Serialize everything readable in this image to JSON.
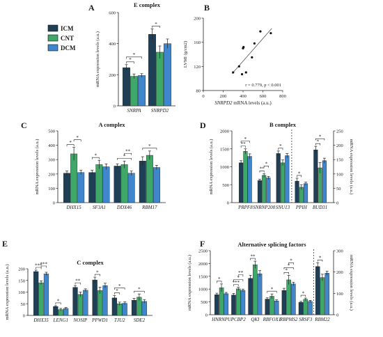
{
  "colors": {
    "ICM": "#1f3f56",
    "CNT": "#3fa768",
    "DCM": "#3f86cd"
  },
  "legend": {
    "entries": [
      {
        "label": "ICM",
        "color": "#1f3f56"
      },
      {
        "label": "CNT",
        "color": "#3fa768"
      },
      {
        "label": "DCM",
        "color": "#3f86cd"
      }
    ]
  },
  "chart_data": [
    {
      "id": "A",
      "letter": "A",
      "type": "bar",
      "title": "E complex",
      "ylabel": "mRNA expression levels (a.u.)",
      "ylim": [
        0,
        600
      ],
      "yticks": [
        0,
        200,
        400,
        600
      ],
      "categories": [
        "SNRPA",
        "SNRPD2"
      ],
      "series": [
        {
          "name": "ICM",
          "values": [
            245,
            460
          ],
          "errors": [
            20,
            35
          ]
        },
        {
          "name": "CNT",
          "values": [
            190,
            345
          ],
          "errors": [
            15,
            40
          ]
        },
        {
          "name": "DCM",
          "values": [
            195,
            400
          ],
          "errors": [
            12,
            30
          ]
        }
      ],
      "significance": [
        {
          "cat": 0,
          "from": 0,
          "to": 1,
          "label": "*"
        },
        {
          "cat": 0,
          "from": 0,
          "to": 2,
          "label": "*"
        },
        {
          "cat": 1,
          "from": 0,
          "to": 1,
          "label": "*"
        }
      ]
    },
    {
      "id": "B",
      "letter": "B",
      "type": "scatter",
      "title": "",
      "xlabel": "SNRPD2 mRNA levels (a.u.)",
      "ylabel": "LVMI (g/cm2)",
      "xlim": [
        0,
        700
      ],
      "ylim": [
        80,
        200
      ],
      "xticks": [
        0,
        200,
        400,
        600,
        800
      ],
      "yticks": [
        80,
        120,
        160,
        200
      ],
      "points": [
        {
          "x": 300,
          "y": 110
        },
        {
          "x": 360,
          "y": 120
        },
        {
          "x": 390,
          "y": 107
        },
        {
          "x": 400,
          "y": 150
        },
        {
          "x": 405,
          "y": 152
        },
        {
          "x": 430,
          "y": 110
        },
        {
          "x": 490,
          "y": 135
        },
        {
          "x": 515,
          "y": 158
        },
        {
          "x": 575,
          "y": 178
        },
        {
          "x": 680,
          "y": 175
        }
      ],
      "fit": {
        "x1": 290,
        "y1": 108,
        "x2": 690,
        "y2": 183
      },
      "annotation": "r = 0.779, p < 0.001"
    },
    {
      "id": "C",
      "letter": "C",
      "type": "bar",
      "title": "A complex",
      "ylabel": "mRNA expression levels (a.u.)",
      "ylim": [
        0,
        500
      ],
      "yticks": [
        0,
        100,
        200,
        300,
        400,
        500
      ],
      "categories": [
        "DHX15",
        "SF3A1",
        "DDX46",
        "RBM17"
      ],
      "series": [
        {
          "name": "ICM",
          "values": [
            205,
            210,
            255,
            290
          ],
          "errors": [
            15,
            15,
            15,
            30
          ]
        },
        {
          "name": "CNT",
          "values": [
            340,
            265,
            265,
            330
          ],
          "errors": [
            45,
            30,
            25,
            30
          ]
        },
        {
          "name": "DCM",
          "values": [
            210,
            250,
            205,
            245
          ],
          "errors": [
            15,
            20,
            15,
            15
          ]
        }
      ],
      "significance": [
        {
          "cat": 0,
          "from": 0,
          "to": 1,
          "label": "*"
        },
        {
          "cat": 0,
          "from": 1,
          "to": 2,
          "label": "*"
        },
        {
          "cat": 1,
          "from": 0,
          "to": 1,
          "label": "*"
        },
        {
          "cat": 2,
          "from": 0,
          "to": 2,
          "label": "*"
        },
        {
          "cat": 2,
          "from": 1,
          "to": 2,
          "label": "**"
        },
        {
          "cat": 3,
          "from": 0,
          "to": 2,
          "label": "*"
        }
      ]
    },
    {
      "id": "D",
      "letter": "D",
      "type": "bar",
      "title": "B complex",
      "ylabel": "mRNA expression levels (a.u.)",
      "ylabel_right": "mRNA expression levels (a.u.)",
      "ylim": [
        0,
        2000
      ],
      "yticks": [
        0,
        500,
        1000,
        1500,
        2000
      ],
      "ylim_right": [
        0,
        250
      ],
      "yticks_right": [
        0,
        50,
        100,
        150,
        200,
        250
      ],
      "split_after": 2,
      "categories": [
        "PRPF8",
        "SNRNP200",
        "SNU13",
        "PPIH",
        "BUD31"
      ],
      "series": [
        {
          "name": "ICM",
          "values": [
            1110,
            615,
            1370,
            600,
            1470
          ],
          "errors": [
            60,
            40,
            70,
            80,
            100
          ]
        },
        {
          "name": "CNT",
          "values": [
            1430,
            760,
            1110,
            430,
            970
          ],
          "errors": [
            70,
            50,
            80,
            70,
            150
          ]
        },
        {
          "name": "DCM",
          "values": [
            1290,
            690,
            1310,
            530,
            1170
          ],
          "errors": [
            70,
            40,
            60,
            40,
            70
          ]
        }
      ],
      "significance": [
        {
          "cat": 0,
          "from": 0,
          "to": 1,
          "label": "**"
        },
        {
          "cat": 0,
          "from": 0,
          "to": 2,
          "label": "*"
        },
        {
          "cat": 1,
          "from": 0,
          "to": 1,
          "label": "**"
        },
        {
          "cat": 1,
          "from": 1,
          "to": 2,
          "label": "*"
        },
        {
          "cat": 2,
          "from": 0,
          "to": 1,
          "label": "*"
        },
        {
          "cat": 3,
          "from": 0,
          "to": 1,
          "label": "*"
        },
        {
          "cat": 4,
          "from": 0,
          "to": 1,
          "label": "*"
        },
        {
          "cat": 4,
          "from": 0,
          "to": 2,
          "label": "*"
        }
      ]
    },
    {
      "id": "E",
      "letter": "E",
      "type": "bar",
      "title": "C complex",
      "ylabel": "mRNA expression levels (a.u.)",
      "ylim": [
        0,
        200
      ],
      "yticks": [
        0,
        50,
        100,
        150,
        200
      ],
      "categories": [
        "DHX35",
        "LENG1",
        "NOSIP",
        "PPWD1",
        "TJU2",
        "SDE2"
      ],
      "series": [
        {
          "name": "ICM",
          "values": [
            188,
            38,
            120,
            152,
            75,
            65
          ],
          "errors": [
            6,
            4,
            8,
            12,
            10,
            8
          ]
        },
        {
          "name": "CNT",
          "values": [
            140,
            25,
            90,
            107,
            50,
            78
          ],
          "errors": [
            8,
            5,
            10,
            14,
            7,
            14
          ]
        },
        {
          "name": "DCM",
          "values": [
            178,
            30,
            108,
            128,
            52,
            60
          ],
          "errors": [
            7,
            4,
            6,
            10,
            6,
            8
          ]
        }
      ],
      "significance": [
        {
          "cat": 0,
          "from": 0,
          "to": 1,
          "label": "***"
        },
        {
          "cat": 0,
          "from": 1,
          "to": 2,
          "label": "***"
        },
        {
          "cat": 1,
          "from": 0,
          "to": 1,
          "label": "*"
        },
        {
          "cat": 2,
          "from": 0,
          "to": 1,
          "label": "**"
        },
        {
          "cat": 3,
          "from": 0,
          "to": 1,
          "label": "*"
        },
        {
          "cat": 4,
          "from": 0,
          "to": 1,
          "label": "*"
        },
        {
          "cat": 4,
          "from": 0,
          "to": 2,
          "label": "*"
        },
        {
          "cat": 5,
          "from": 0,
          "to": 2,
          "label": "*"
        }
      ]
    },
    {
      "id": "F",
      "letter": "F",
      "type": "bar",
      "title": "Alternative splicing factors",
      "ylabel": "mRNA expression levels (a.u.)",
      "ylabel_right": "mRNA expression levels (a.u.)",
      "ylim": [
        0,
        2500
      ],
      "yticks": [
        0,
        500,
        1000,
        1500,
        2000,
        2500
      ],
      "ylim_right": [
        0,
        300
      ],
      "yticks_right": [
        0,
        100,
        200,
        300
      ],
      "split_after": 5,
      "categories": [
        "HNRNPU",
        "PCBP2",
        "QKI",
        "RBFOX1",
        "RBPMS2",
        "SRSF3",
        "RBM22"
      ],
      "series": [
        {
          "name": "ICM",
          "values": [
            780,
            770,
            1420,
            610,
            950,
            480,
            1880
          ],
          "errors": [
            60,
            60,
            120,
            50,
            80,
            40,
            150
          ]
        },
        {
          "name": "CNT",
          "values": [
            1050,
            1010,
            1950,
            720,
            1360,
            600,
            1450
          ],
          "errors": [
            150,
            60,
            140,
            90,
            180,
            50,
            130
          ]
        },
        {
          "name": "DCM",
          "values": [
            820,
            950,
            1600,
            540,
            1200,
            520,
            1620
          ],
          "errors": [
            50,
            50,
            120,
            40,
            70,
            40,
            80
          ]
        }
      ],
      "significance": [
        {
          "cat": 0,
          "from": 0,
          "to": 1,
          "label": "*"
        },
        {
          "cat": 1,
          "from": 0,
          "to": 1,
          "label": "***"
        },
        {
          "cat": 1,
          "from": 0,
          "to": 2,
          "label": "*"
        },
        {
          "cat": 1,
          "from": 1,
          "to": 2,
          "label": "**"
        },
        {
          "cat": 2,
          "from": 0,
          "to": 1,
          "label": "**"
        },
        {
          "cat": 3,
          "from": 0,
          "to": 2,
          "label": "*"
        },
        {
          "cat": 4,
          "from": 0,
          "to": 1,
          "label": "*"
        },
        {
          "cat": 4,
          "from": 0,
          "to": 2,
          "label": "*"
        },
        {
          "cat": 4,
          "from": 1,
          "to": 2,
          "label": "*"
        },
        {
          "cat": 5,
          "from": 0,
          "to": 1,
          "label": "*"
        },
        {
          "cat": 6,
          "from": 0,
          "to": 1,
          "label": "*"
        }
      ]
    }
  ]
}
